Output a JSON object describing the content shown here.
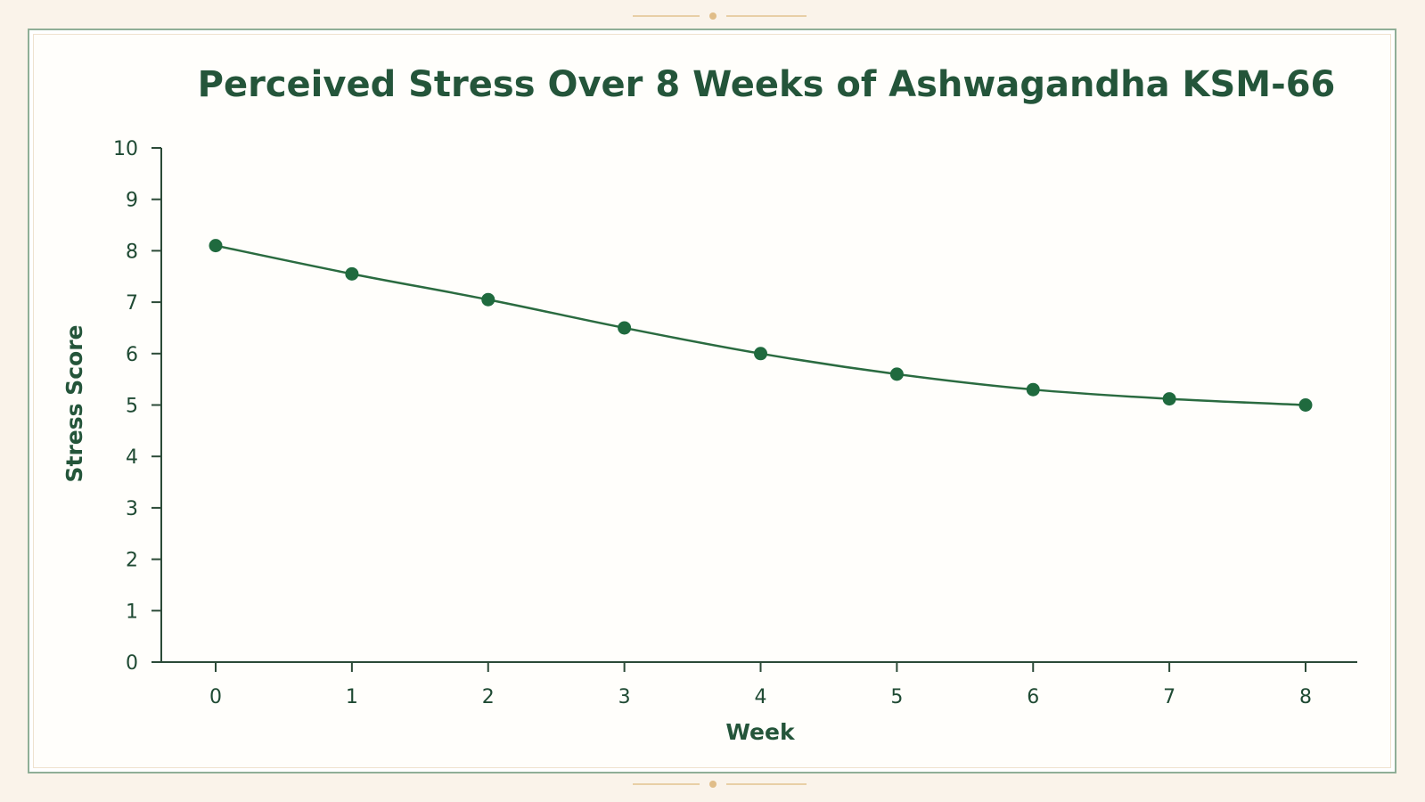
{
  "colors": {
    "line": "#2a6b40",
    "marker": "#1f6a3e",
    "axis": "#2b4a37",
    "title": "#24553a",
    "frame_border": "#8fae97",
    "ornament": "#e0bd89"
  },
  "chart_data": {
    "type": "line",
    "title": "Perceived Stress Over 8 Weeks of Ashwagandha KSM-66",
    "xlabel": "Week",
    "ylabel": "Stress Score",
    "x": [
      0,
      1,
      2,
      3,
      4,
      5,
      6,
      7,
      8
    ],
    "xlim": [
      0,
      8
    ],
    "ylim": [
      0,
      10
    ],
    "xticks": [
      "0",
      "1",
      "2",
      "3",
      "4",
      "5",
      "6",
      "7",
      "8"
    ],
    "yticks": [
      "0",
      "1",
      "2",
      "3",
      "4",
      "5",
      "6",
      "7",
      "8",
      "9",
      "10"
    ],
    "grid": false,
    "legend": "none",
    "series": [
      {
        "values": [
          8.1,
          7.55,
          7.05,
          6.5,
          6.0,
          5.6,
          5.3,
          5.12,
          5.0
        ]
      }
    ]
  }
}
